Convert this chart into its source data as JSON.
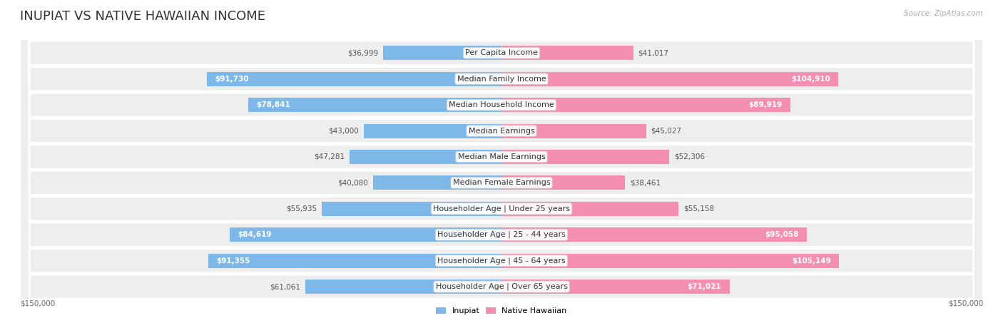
{
  "title": "INUPIAT VS NATIVE HAWAIIAN INCOME",
  "source": "Source: ZipAtlas.com",
  "categories": [
    "Per Capita Income",
    "Median Family Income",
    "Median Household Income",
    "Median Earnings",
    "Median Male Earnings",
    "Median Female Earnings",
    "Householder Age | Under 25 years",
    "Householder Age | 25 - 44 years",
    "Householder Age | 45 - 64 years",
    "Householder Age | Over 65 years"
  ],
  "inupiat_values": [
    36999,
    91730,
    78841,
    43000,
    47281,
    40080,
    55935,
    84619,
    91355,
    61061
  ],
  "hawaiian_values": [
    41017,
    104910,
    89919,
    45027,
    52306,
    38461,
    55158,
    95058,
    105149,
    71021
  ],
  "inupiat_color": "#7db8e8",
  "hawaiian_color": "#f48fb1",
  "inupiat_label": "Inupiat",
  "hawaiian_label": "Native Hawaiian",
  "axis_max": 150000,
  "row_bg_color": "#eeeeee",
  "xlabel_left": "$150,000",
  "xlabel_right": "$150,000",
  "title_fontsize": 13,
  "label_fontsize": 8.0,
  "value_fontsize": 7.5,
  "inside_label_threshold": 65000
}
